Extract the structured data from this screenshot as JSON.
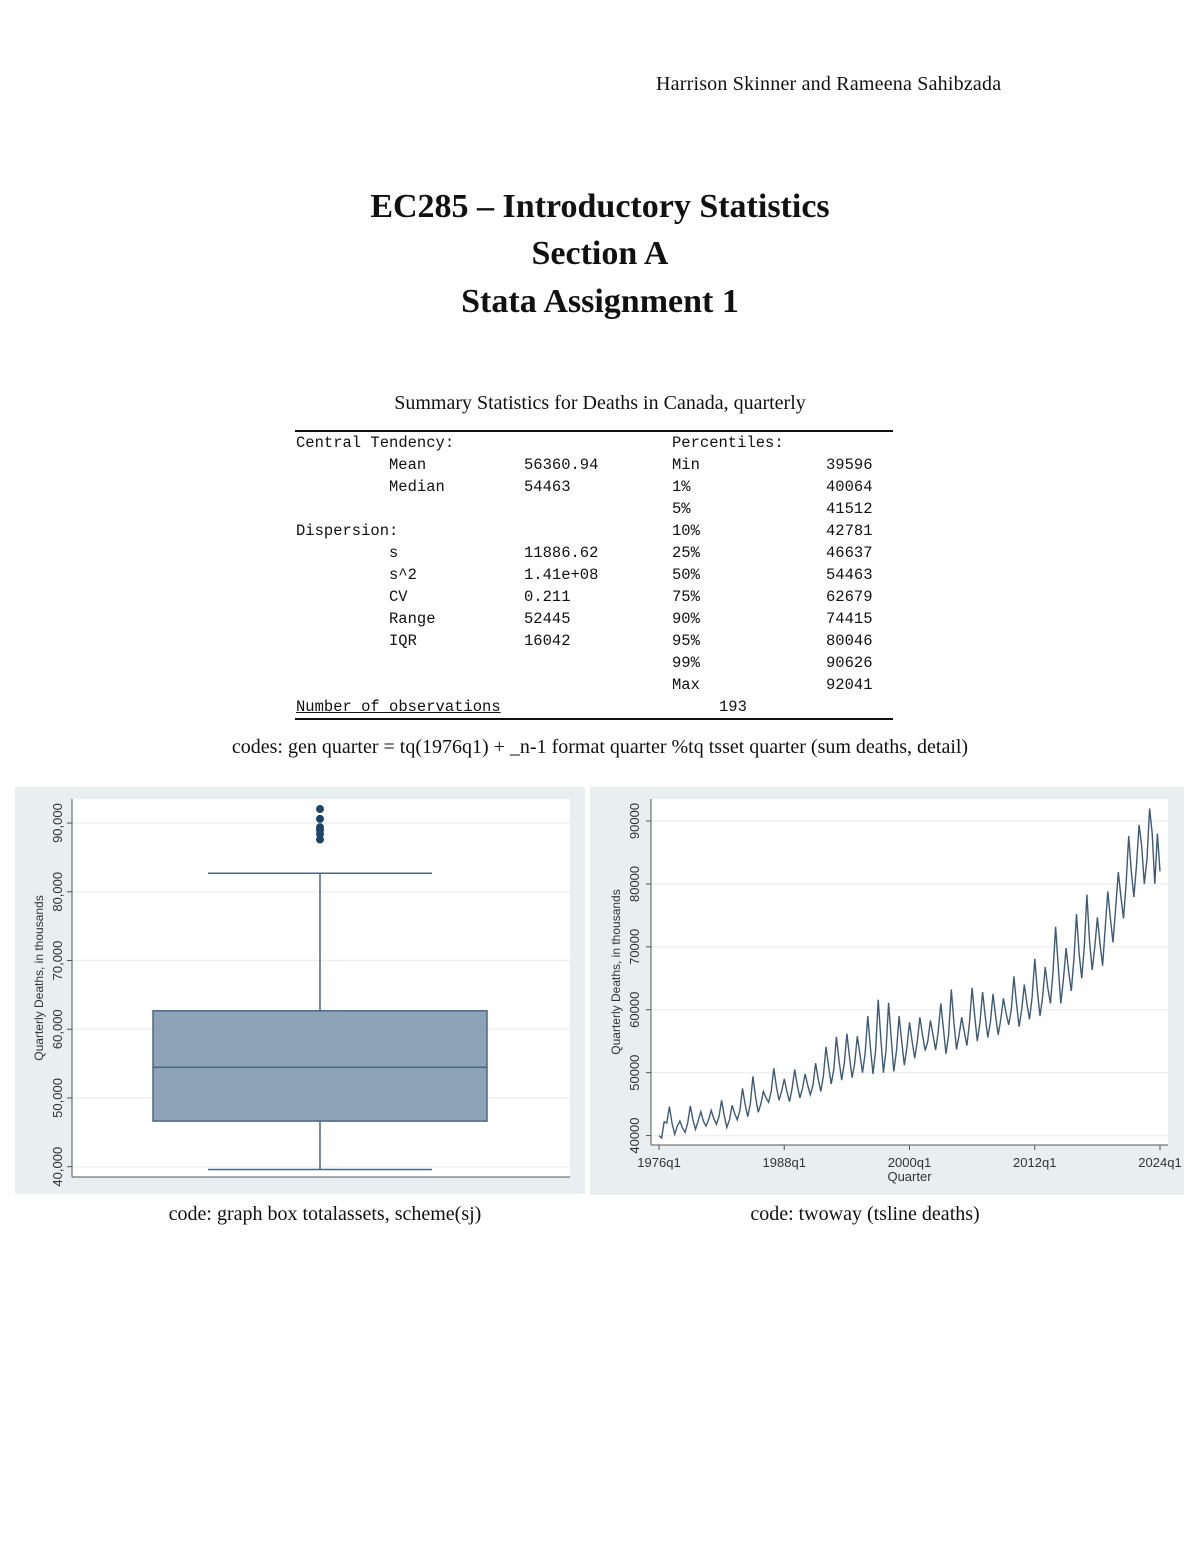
{
  "header": {
    "authors": "Harrison Skinner and Rameena Sahibzada"
  },
  "title": {
    "line1": "EC285 – Introductory Statistics",
    "line2": "Section A",
    "line3": "Stata Assignment 1"
  },
  "table": {
    "caption": "Summary Statistics for Deaths in Canada, quarterly",
    "rows": [
      [
        "Central Tendency:",
        "",
        "",
        "Percentiles:",
        ""
      ],
      [
        "",
        "Mean",
        "56360.94",
        "Min",
        "39596"
      ],
      [
        "",
        "Median",
        "54463",
        "1%",
        "40064"
      ],
      [
        "",
        "",
        "",
        "5%",
        "41512"
      ],
      [
        "Dispersion:",
        "",
        "",
        "10%",
        "42781"
      ],
      [
        "",
        "s",
        "11886.62",
        "25%",
        "46637"
      ],
      [
        "",
        "s^2",
        "1.41e+08",
        "50%",
        "54463"
      ],
      [
        "",
        "CV",
        "0.211",
        "75%",
        "62679"
      ],
      [
        "",
        "Range",
        "52445",
        "90%",
        "74415"
      ],
      [
        "",
        "IQR",
        "16042",
        "95%",
        "80046"
      ],
      [
        "",
        "",
        "",
        "99%",
        "90626"
      ],
      [
        "",
        "",
        "",
        "Max",
        "92041"
      ]
    ],
    "obs_label": "Number of observations",
    "obs_value": "193"
  },
  "codes_text": "codes: gen quarter = tq(1976q1) + _n-1 format quarter %tq tsset quarter (sum deaths, detail)",
  "captions": {
    "box": "code: graph box totalassets, scheme(sj)",
    "line": "code: twoway (tsline deaths)"
  },
  "colors": {
    "panel_bg": "#e9eef1",
    "box_fill": "#8ea3b8",
    "box_stroke": "#4a6685",
    "line": "#3f5a76",
    "outlier": "#1f4468"
  },
  "chart_data": [
    {
      "type": "box",
      "ylabel": "Quarterly Deaths, in thousands",
      "ylim": [
        38500,
        93500
      ],
      "yticks": [
        "40,000",
        "50,000",
        "60,000",
        "70,000",
        "80,000",
        "90,000"
      ],
      "ytick_values": [
        40000,
        50000,
        60000,
        70000,
        80000,
        90000
      ],
      "grid": true,
      "min": 39596,
      "q1": 46637,
      "median": 54463,
      "q3": 62679,
      "upper_adjacent": 82700,
      "outliers": [
        87600,
        88400,
        89000,
        89400,
        90600,
        92041
      ]
    },
    {
      "type": "line",
      "ylabel": "Quarterly Deaths, in thousands",
      "xlabel": "Quarter",
      "xticks": [
        "1976q1",
        "1988q1",
        "2000q1",
        "2012q1",
        "2024q1"
      ],
      "yticks": [
        "40000",
        "50000",
        "60000",
        "70000",
        "80000",
        "90000"
      ],
      "ytick_values": [
        40000,
        50000,
        60000,
        70000,
        80000,
        90000
      ],
      "ylim": [
        38500,
        93500
      ],
      "x_start": "1976q1",
      "x_end": "2024q1",
      "grid": true,
      "values": [
        40000,
        39600,
        42200,
        42000,
        44600,
        42000,
        40200,
        41500,
        42300,
        41200,
        40500,
        42000,
        44700,
        42500,
        41000,
        42300,
        43800,
        42300,
        41500,
        42500,
        44000,
        42700,
        41800,
        43000,
        45600,
        43200,
        41300,
        42500,
        44800,
        43500,
        42500,
        44000,
        47500,
        45000,
        43000,
        45000,
        49400,
        46200,
        43700,
        45000,
        47000,
        46000,
        45300,
        47000,
        50700,
        47800,
        45600,
        47000,
        49000,
        47000,
        45400,
        47500,
        50500,
        48000,
        46000,
        47500,
        49800,
        48000,
        46500,
        48000,
        51500,
        49000,
        47000,
        49500,
        54100,
        51000,
        48200,
        50500,
        55700,
        52000,
        48800,
        51500,
        56200,
        52500,
        49200,
        51500,
        55800,
        53000,
        50000,
        53000,
        59000,
        54000,
        49800,
        53500,
        61600,
        55500,
        50000,
        53500,
        61100,
        55500,
        50200,
        53500,
        59000,
        55000,
        51200,
        54000,
        58000,
        55000,
        52300,
        55000,
        58800,
        56000,
        53500,
        55000,
        58300,
        56000,
        53600,
        56500,
        61000,
        57000,
        53000,
        56000,
        63200,
        58000,
        53700,
        56000,
        58800,
        56500,
        54300,
        58000,
        63500,
        59000,
        55000,
        58000,
        62800,
        59000,
        55600,
        58000,
        62500,
        59000,
        56000,
        58500,
        61800,
        59500,
        57600,
        60000,
        65300,
        61000,
        57300,
        60000,
        64000,
        61000,
        58500,
        62000,
        68100,
        63000,
        59000,
        62000,
        66800,
        63500,
        61000,
        66000,
        73200,
        67000,
        61000,
        65000,
        69800,
        66000,
        63000,
        68000,
        75200,
        69000,
        65000,
        70000,
        78300,
        71000,
        66300,
        70000,
        74700,
        70500,
        67000,
        73000,
        78800,
        74500,
        70700,
        76000,
        81900,
        78000,
        74500,
        80000,
        87600,
        82000,
        77900,
        83000,
        89400,
        86000,
        80000,
        84000,
        92000,
        88000,
        80000,
        88000,
        82000
      ]
    }
  ]
}
